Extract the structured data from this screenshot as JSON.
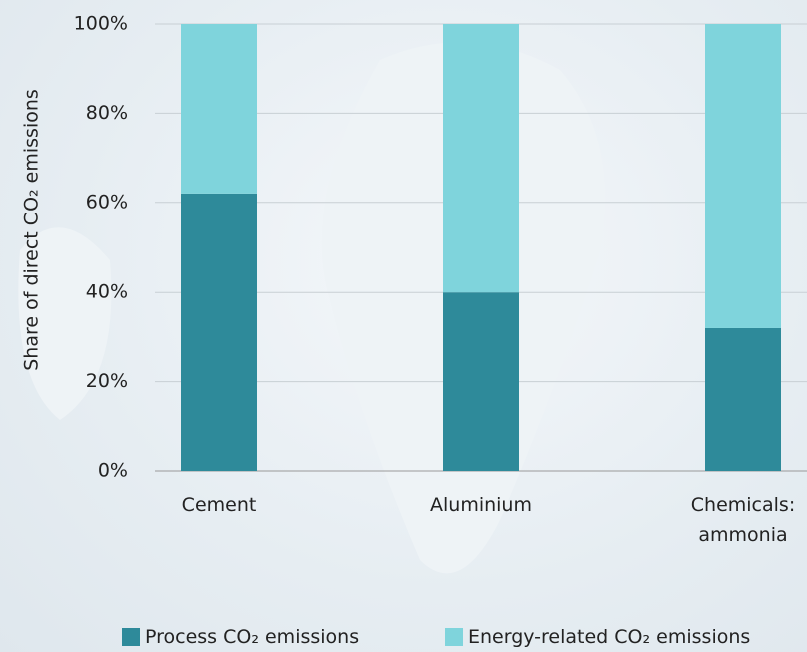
{
  "chart_data": {
    "type": "stacked_bar",
    "y_label": "Share of direct CO₂ emissions",
    "categories": [
      "Cement",
      "Aluminium",
      "Chemicals: ammonia"
    ],
    "series": [
      {
        "name": "Process CO₂ emissions",
        "color": "#2e8a9a",
        "values": [
          62,
          40,
          32
        ]
      },
      {
        "name": "Energy-related CO₂ emissions",
        "color": "#7fd4dc",
        "values": [
          38,
          60,
          68
        ]
      }
    ],
    "ylim": [
      0,
      100
    ],
    "yticks": [
      {
        "value": 0,
        "label": "0%"
      },
      {
        "value": 20,
        "label": "20%"
      },
      {
        "value": 40,
        "label": "40%"
      },
      {
        "value": 60,
        "label": "60%"
      },
      {
        "value": 80,
        "label": "80%"
      },
      {
        "value": 100,
        "label": "100%"
      }
    ],
    "grid": true
  }
}
